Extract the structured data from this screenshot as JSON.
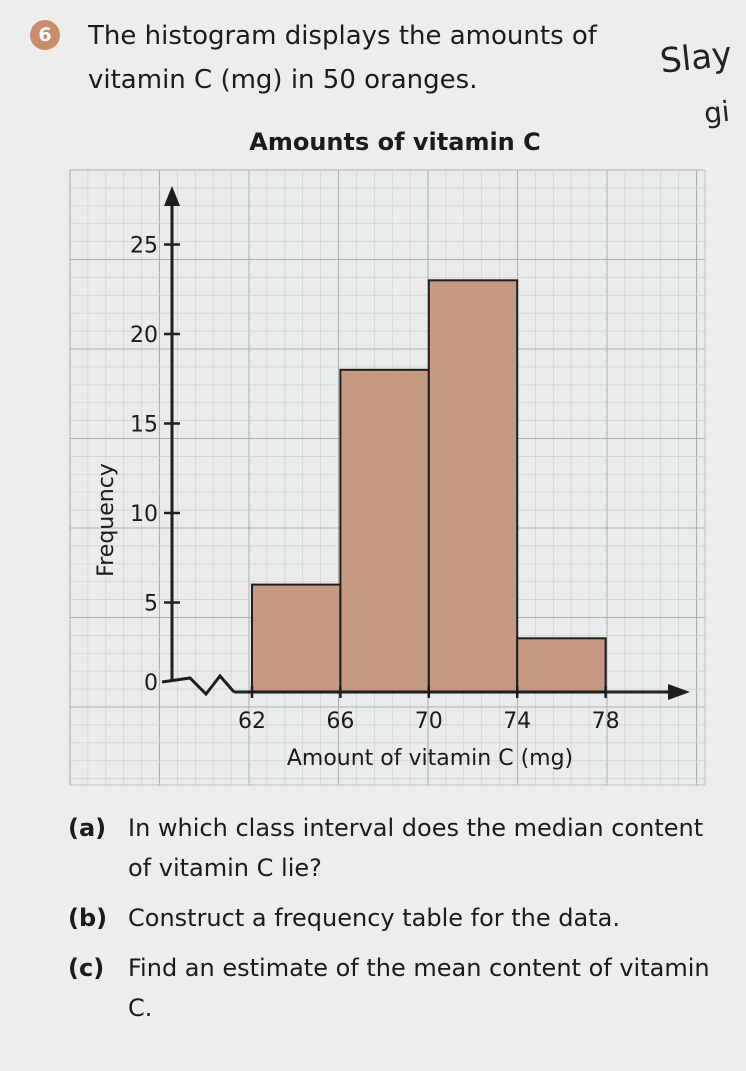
{
  "question": {
    "number": "6",
    "stem": "The histogram displays the amounts of vitamin C (mg) in 50 oranges."
  },
  "handwriting": {
    "word1": "Slay",
    "word2": "gi"
  },
  "chart_data": {
    "type": "bar",
    "title": "Amounts of vitamin C",
    "xlabel": "Amount of vitamin C (mg)",
    "ylabel": "Frequency",
    "x_ticks": [
      62,
      66,
      70,
      74,
      78
    ],
    "y_ticks": [
      0,
      5,
      10,
      15,
      20,
      25
    ],
    "categories": [
      "62-66",
      "66-70",
      "70-74",
      "74-78"
    ],
    "bins": [
      [
        62,
        66
      ],
      [
        66,
        70
      ],
      [
        70,
        74
      ],
      [
        74,
        78
      ]
    ],
    "values": [
      6,
      18,
      23,
      3
    ],
    "ylim": [
      0,
      27
    ],
    "grid": true,
    "bar_color": "#c69983",
    "axis_break": true
  },
  "parts": [
    {
      "label": "(a)",
      "text": "In which class interval does the median content of vitamin C lie?"
    },
    {
      "label": "(b)",
      "text": "Construct a frequency table for the data."
    },
    {
      "label": "(c)",
      "text": "Find an estimate of the mean content of vitamin C."
    }
  ]
}
